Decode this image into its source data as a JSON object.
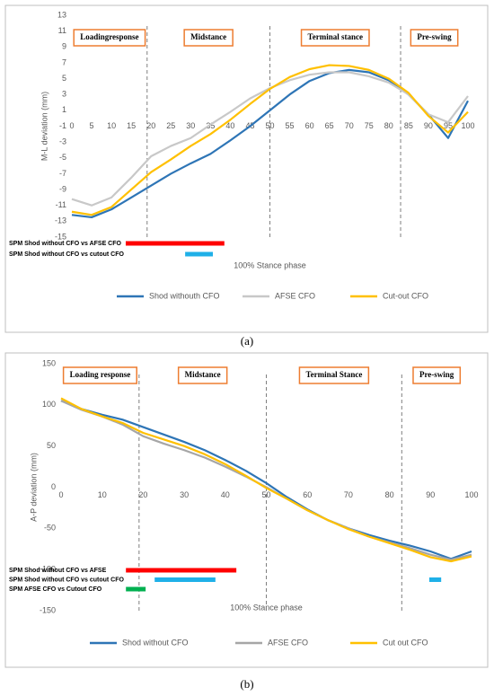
{
  "chart_data": [
    {
      "type": "line",
      "caption": "(a)",
      "y_label": "M-L deviation (mm)",
      "x_label": "100% Stance phase",
      "x": [
        0,
        5,
        10,
        15,
        20,
        25,
        30,
        35,
        40,
        45,
        50,
        55,
        60,
        65,
        70,
        75,
        80,
        85,
        90,
        95,
        100
      ],
      "series": [
        {
          "name": "Shod withouth CFO",
          "color": "#2e75b6",
          "values": [
            -12.2,
            -12.5,
            -11.5,
            -10,
            -8.5,
            -7,
            -5.7,
            -4.5,
            -2.8,
            -1,
            1,
            3,
            4.7,
            5.7,
            6.1,
            5.8,
            4.8,
            3,
            0.5,
            -2.5,
            2.2
          ]
        },
        {
          "name": "AFSE CFO",
          "color": "#c8c8c8",
          "values": [
            -10.2,
            -11,
            -10,
            -7.5,
            -4.8,
            -3.5,
            -2.5,
            -0.8,
            0.8,
            2.5,
            3.8,
            4.8,
            5.5,
            5.8,
            5.8,
            5.3,
            4.5,
            3,
            0.5,
            -0.5,
            2.8
          ]
        },
        {
          "name": "Cut-out CFO",
          "color": "#ffc000",
          "values": [
            -11.8,
            -12.2,
            -11.2,
            -9,
            -6.8,
            -5.2,
            -3.5,
            -2,
            -0.2,
            1.8,
            3.7,
            5.2,
            6.2,
            6.7,
            6.6,
            6.1,
            5,
            3.2,
            0.3,
            -1.8,
            0.8
          ]
        }
      ],
      "xlim": [
        0,
        100
      ],
      "xticks": [
        0,
        5,
        10,
        15,
        20,
        25,
        30,
        35,
        40,
        45,
        50,
        55,
        60,
        65,
        70,
        75,
        80,
        85,
        90,
        95,
        100
      ],
      "ylim": [
        -15,
        13
      ],
      "yticks": [
        13,
        11,
        9,
        7,
        5,
        3,
        1,
        -1,
        -3,
        -5,
        -7,
        -9,
        -11,
        -13,
        -15
      ],
      "phases": [
        "Loadingresponse",
        "Midstance",
        "Terminal stance",
        "Pre-swing"
      ],
      "phase_boundaries": [
        19,
        50,
        83
      ],
      "spm": [
        {
          "label": "SPM Shod without CFO vs AFSE CFO",
          "color": "#ff0000",
          "ranges": [
            [
              13.6,
              38.5
            ]
          ]
        },
        {
          "label": "SPM Shod without CFO vs cutout CFO",
          "color": "#1fb0e8",
          "ranges": [
            [
              28.6,
              35.6
            ]
          ]
        }
      ]
    },
    {
      "type": "line",
      "caption": "(b)",
      "y_label": "A-P deviation (mm)",
      "x_label": "100% Stance phase",
      "x": [
        0,
        5,
        10,
        15,
        20,
        25,
        30,
        35,
        40,
        45,
        50,
        55,
        60,
        65,
        70,
        75,
        80,
        85,
        90,
        95,
        100
      ],
      "series": [
        {
          "name": "Shod without CFO",
          "color": "#2e75b6",
          "values": [
            105,
            95,
            88,
            82,
            73,
            64,
            55,
            45,
            33,
            20,
            5,
            -12,
            -27,
            -40,
            -50,
            -58,
            -65,
            -71,
            -78,
            -87,
            -78
          ]
        },
        {
          "name": "AFSE CFO",
          "color": "#a6a6a6",
          "values": [
            105,
            94,
            86,
            76,
            62,
            53,
            45,
            36,
            25,
            13,
            0,
            -14,
            -28,
            -40,
            -50,
            -60,
            -67,
            -74,
            -82,
            -88,
            -82
          ]
        },
        {
          "name": "Cut out CFO",
          "color": "#ffc000",
          "values": [
            108,
            95,
            86,
            78,
            66,
            58,
            50,
            40,
            28,
            14,
            -1,
            -14,
            -28,
            -40,
            -51,
            -60,
            -68,
            -76,
            -85,
            -90,
            -84
          ]
        }
      ],
      "xlim": [
        0,
        100
      ],
      "xticks": [
        0,
        10,
        20,
        30,
        40,
        50,
        60,
        70,
        80,
        90,
        100
      ],
      "ylim": [
        -150,
        150
      ],
      "yticks": [
        150,
        100,
        50,
        0,
        -50,
        -100,
        -150
      ],
      "phases": [
        "Loading response",
        "Midstance",
        "Terminal Stance",
        "Pre-swing"
      ],
      "phase_boundaries": [
        19,
        50,
        83
      ],
      "spm": [
        {
          "label": "SPM Shod without CFO vs AFSE",
          "color": "#ff0000",
          "ranges": [
            [
              15.8,
              42.7
            ]
          ]
        },
        {
          "label": "SPM Shod without CFO vs cutout CFO",
          "color": "#1fb0e8",
          "ranges": [
            [
              22.8,
              37.6
            ],
            [
              89.7,
              92.6
            ]
          ]
        },
        {
          "label": "SPM AFSE CFO vs Cutout CFO",
          "color": "#00b050",
          "ranges": [
            [
              15.8,
              20.6
            ]
          ]
        }
      ]
    }
  ]
}
